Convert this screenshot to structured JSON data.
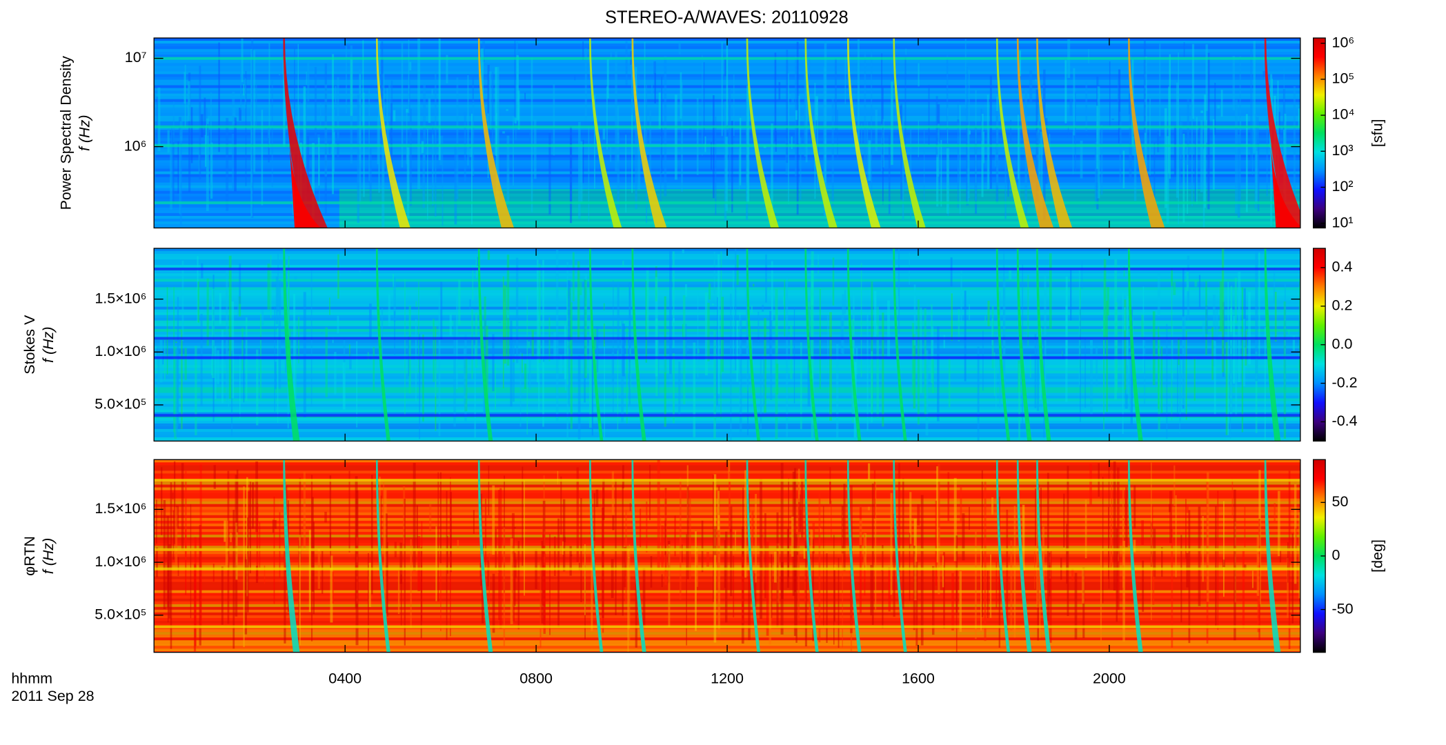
{
  "title": "STEREO-A/WAVES: 20110928",
  "time_label": "hhmm",
  "date_label": "2011 Sep 28",
  "colormap": [
    "#000000",
    "#3c007f",
    "#1010ff",
    "#0090ff",
    "#00e0e0",
    "#00e060",
    "#60f000",
    "#f0f000",
    "#ff8000",
    "#ff0000",
    "#d00000"
  ],
  "chart_data": [
    {
      "type": "spectrogram",
      "ylabel": [
        "Power Spectral Density",
        "f (Hz)"
      ],
      "xlim": [
        0,
        24
      ],
      "ylog": true,
      "ylim": [
        120000,
        17000000
      ],
      "yticks": [
        {
          "value": 1000000,
          "label": "10⁶"
        },
        {
          "value": 10000000,
          "label": "10⁷"
        }
      ],
      "colorbar": {
        "label": "[sfu]",
        "log": true,
        "lim": [
          7.4,
          1400000
        ],
        "ticks": [
          {
            "value": 10,
            "label": "10¹"
          },
          {
            "value": 100,
            "label": "10²"
          },
          {
            "value": 1000,
            "label": "10³"
          },
          {
            "value": 10000,
            "label": "10⁴"
          },
          {
            "value": 100000,
            "label": "10⁵"
          },
          {
            "value": 1000000,
            "label": "10⁶"
          }
        ]
      }
    },
    {
      "type": "spectrogram",
      "ylabel": [
        "Stokes V",
        "f (Hz)"
      ],
      "xlim": [
        0,
        24
      ],
      "ylog": false,
      "ylim": [
        158000,
        1980000
      ],
      "yticks": [
        {
          "value": 500000,
          "label": "5.0×10⁵"
        },
        {
          "value": 1000000,
          "label": "1.0×10⁶"
        },
        {
          "value": 1500000,
          "label": "1.5×10⁶"
        }
      ],
      "colorbar": {
        "log": false,
        "lim": [
          -0.5,
          0.5
        ],
        "ticks": [
          -0.4,
          -0.2,
          {
            "value": 0,
            "label": "0.0"
          },
          0.2,
          0.4
        ]
      }
    },
    {
      "type": "spectrogram",
      "ylabel": [
        "φRTN",
        "f (Hz)"
      ],
      "xlim": [
        0,
        24
      ],
      "ylog": false,
      "ylim": [
        149000,
        1970000
      ],
      "yticks": [
        {
          "value": 500000,
          "label": "5.0×10⁵"
        },
        {
          "value": 1000000,
          "label": "1.0×10⁶"
        },
        {
          "value": 1500000,
          "label": "1.5×10⁶"
        }
      ],
      "xticks": [
        {
          "value": 4,
          "label": "0400"
        },
        {
          "value": 8,
          "label": "0800"
        },
        {
          "value": 12,
          "label": "1200"
        },
        {
          "value": 16,
          "label": "1600"
        },
        {
          "value": 20,
          "label": "2000"
        }
      ],
      "colorbar": {
        "label": "[deg]",
        "log": false,
        "lim": [
          -90,
          90
        ],
        "ticks": [
          -50,
          0,
          50
        ]
      }
    }
  ]
}
